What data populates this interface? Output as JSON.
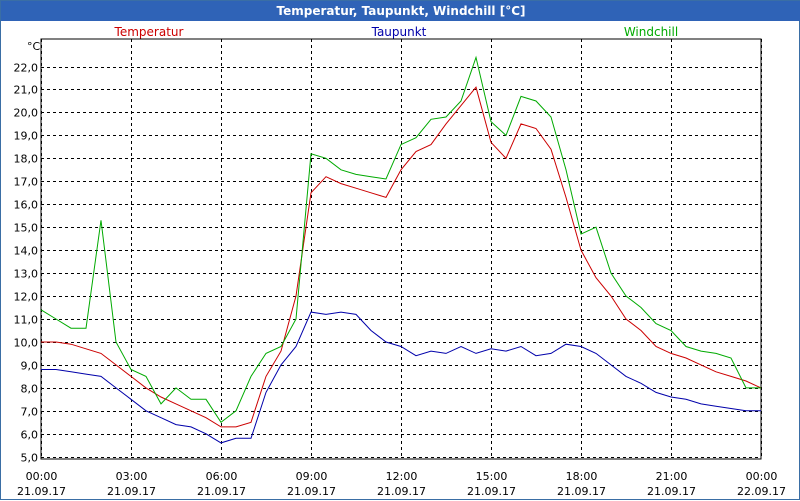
{
  "window": {
    "title": "Temperatur, Taupunkt, Windchill [°C]"
  },
  "colors": {
    "titlebar": "#2f63b7",
    "grid": "#000000",
    "temperatur": "#cc0000",
    "taupunkt": "#0000aa",
    "windchill": "#00aa00"
  },
  "chart_data": {
    "type": "line",
    "title": "Temperatur, Taupunkt, Windchill [°C]",
    "ylabel": "°C",
    "ylim": [
      5.0,
      22.0
    ],
    "yticks": [
      "5,0",
      "6,0",
      "7,0",
      "8,0",
      "9,0",
      "10,0",
      "11,0",
      "12,0",
      "13,0",
      "14,0",
      "15,0",
      "16,0",
      "17,0",
      "18,0",
      "19,0",
      "20,0",
      "21,0",
      "22,0"
    ],
    "xticks": [
      {
        "time": "00:00",
        "date": "21.09.17"
      },
      {
        "time": "03:00",
        "date": "21.09.17"
      },
      {
        "time": "06:00",
        "date": "21.09.17"
      },
      {
        "time": "09:00",
        "date": "21.09.17"
      },
      {
        "time": "12:00",
        "date": "21.09.17"
      },
      {
        "time": "15:00",
        "date": "21.09.17"
      },
      {
        "time": "18:00",
        "date": "21.09.17"
      },
      {
        "time": "21:00",
        "date": "21.09.17"
      },
      {
        "time": "00:00",
        "date": "22.09.17"
      }
    ],
    "x_hours": [
      0,
      0.5,
      1,
      1.5,
      2,
      2.5,
      3,
      3.5,
      4,
      4.5,
      5,
      5.5,
      6,
      6.5,
      7,
      7.5,
      8,
      8.5,
      9,
      9.5,
      10,
      10.5,
      11,
      11.5,
      12,
      12.5,
      13,
      13.5,
      14,
      14.5,
      15,
      15.5,
      16,
      16.5,
      17,
      17.5,
      18,
      18.5,
      19,
      19.5,
      20,
      20.5,
      21,
      21.5,
      22,
      22.5,
      23,
      23.5,
      24
    ],
    "grid": true,
    "legend_position": "top",
    "series": [
      {
        "name": "Temperatur",
        "color": "#cc0000",
        "values": [
          10.0,
          10.0,
          9.9,
          9.7,
          9.5,
          9.0,
          8.5,
          8.0,
          7.6,
          7.3,
          7.0,
          6.7,
          6.3,
          6.3,
          6.5,
          8.5,
          9.6,
          12.0,
          16.5,
          17.2,
          16.9,
          16.7,
          16.5,
          16.3,
          17.5,
          18.3,
          18.6,
          19.5,
          20.3,
          21.1,
          18.7,
          18.0,
          19.5,
          19.3,
          18.4,
          16.3,
          14.0,
          12.8,
          12.0,
          11.0,
          10.5,
          9.8,
          9.5,
          9.3,
          9.0,
          8.7,
          8.5,
          8.3,
          8.0
        ]
      },
      {
        "name": "Taupunkt",
        "color": "#0000aa",
        "values": [
          8.8,
          8.8,
          8.7,
          8.6,
          8.5,
          8.0,
          7.5,
          7.0,
          6.7,
          6.4,
          6.3,
          6.0,
          5.6,
          5.8,
          5.8,
          7.8,
          9.0,
          9.8,
          11.3,
          11.2,
          11.3,
          11.2,
          10.5,
          10.0,
          9.8,
          9.4,
          9.6,
          9.5,
          9.8,
          9.5,
          9.7,
          9.6,
          9.8,
          9.4,
          9.5,
          9.9,
          9.8,
          9.5,
          9.0,
          8.5,
          8.2,
          7.8,
          7.6,
          7.5,
          7.3,
          7.2,
          7.1,
          7.0,
          7.0
        ]
      },
      {
        "name": "Windchill",
        "color": "#00aa00",
        "values": [
          11.4,
          11.0,
          10.6,
          10.6,
          15.3,
          10.0,
          8.8,
          8.5,
          7.3,
          8.0,
          7.5,
          7.5,
          6.5,
          7.0,
          8.5,
          9.5,
          9.8,
          11.0,
          18.2,
          18.0,
          17.5,
          17.3,
          17.2,
          17.1,
          18.6,
          18.9,
          19.7,
          19.8,
          20.5,
          22.4,
          19.6,
          19.0,
          20.7,
          20.5,
          19.8,
          17.5,
          14.7,
          15.0,
          13.0,
          12.0,
          11.5,
          10.8,
          10.5,
          9.8,
          9.6,
          9.5,
          9.3,
          8.0,
          8.0
        ]
      }
    ]
  }
}
